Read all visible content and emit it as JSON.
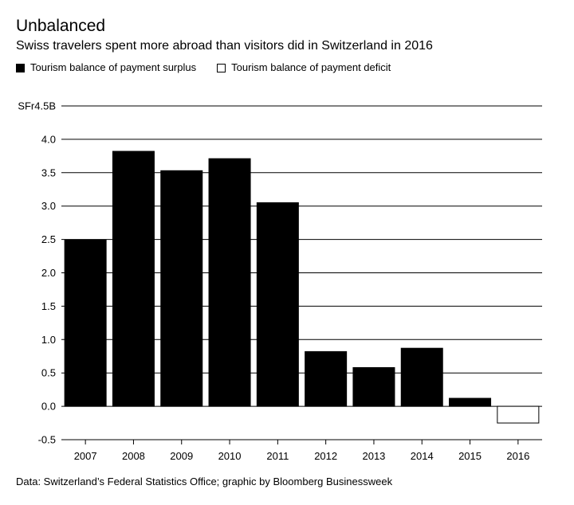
{
  "header": {
    "title": "Unbalanced",
    "subtitle": "Swiss travelers spent more abroad than visitors did in Switzerland in 2016"
  },
  "legend": {
    "surplus_label": "Tourism balance of payment surplus",
    "deficit_label": "Tourism balance of payment deficit"
  },
  "footer": {
    "source": "Data: Switzerland’s Federal Statistics Office; graphic by Bloomberg Businessweek"
  },
  "colors": {
    "surplus": "#000000",
    "deficit": "#ffffff",
    "grid": "#000000"
  },
  "chart_data": {
    "type": "bar",
    "title": "Unbalanced",
    "xlabel": "",
    "ylabel": "SFr (billions)",
    "ylim": [
      -0.5,
      4.5
    ],
    "yticks": [
      -0.5,
      0.0,
      0.5,
      1.0,
      1.5,
      2.0,
      2.5,
      3.0,
      3.5,
      4.0,
      4.5
    ],
    "ytick_labels": [
      "-0.5",
      "0.0",
      "0.5",
      "1.0",
      "1.5",
      "2.0",
      "2.5",
      "3.0",
      "3.5",
      "4.0",
      "SFr4.5B"
    ],
    "categories": [
      "2007",
      "2008",
      "2009",
      "2010",
      "2011",
      "2012",
      "2013",
      "2014",
      "2015",
      "2016"
    ],
    "values": [
      2.49,
      3.82,
      3.53,
      3.71,
      3.05,
      0.82,
      0.58,
      0.87,
      0.12,
      -0.25
    ],
    "grid": true,
    "legend_position": "top-left"
  }
}
